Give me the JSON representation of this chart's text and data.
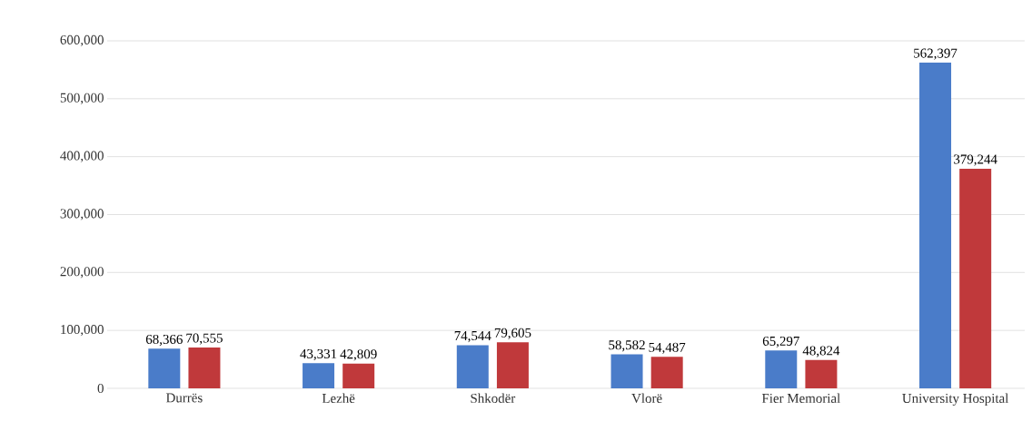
{
  "chart_data": {
    "type": "bar",
    "categories": [
      "Durrës",
      "Lezhë",
      "Shkodër",
      "Vlorë",
      "Fier Memorial",
      "University Hospital"
    ],
    "series": [
      {
        "color": "#4a7cc9",
        "values": [
          68366,
          43331,
          74544,
          58582,
          65297,
          562397
        ],
        "value_labels": [
          "68,366",
          "43,331",
          "74,544",
          "58,582",
          "65,297",
          "562,397"
        ]
      },
      {
        "color": "#c0393b",
        "values": [
          70555,
          42809,
          79605,
          54487,
          48824,
          379244
        ],
        "value_labels": [
          "70,555",
          "42,809",
          "79,605",
          "54,487",
          "48,824",
          "379,244"
        ]
      }
    ],
    "ylim": [
      0,
      600000
    ],
    "yticks": [
      {
        "value": 0,
        "label": "0"
      },
      {
        "value": 100000,
        "label": "100,000"
      },
      {
        "value": 200000,
        "label": "200,000"
      },
      {
        "value": 300000,
        "label": "300,000"
      },
      {
        "value": 400000,
        "label": "400,000"
      },
      {
        "value": 500000,
        "label": "500,000"
      },
      {
        "value": 600000,
        "label": "600,000"
      }
    ],
    "grid": "y"
  }
}
